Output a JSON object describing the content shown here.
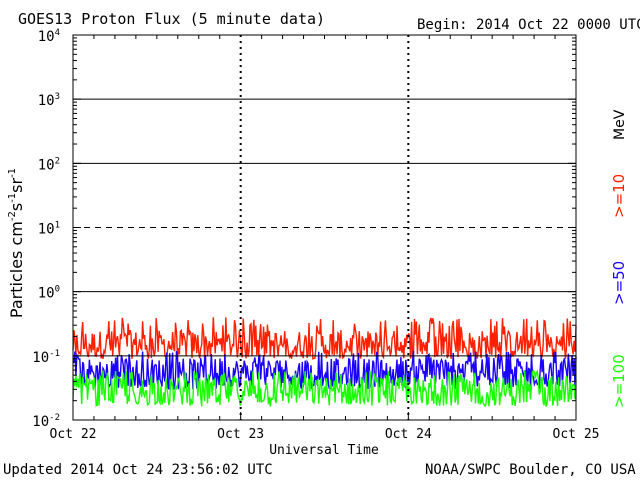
{
  "header": {
    "title": "GOES13 Proton Flux (5 minute data)",
    "begin": "Begin: 2014 Oct 22 0000 UTC"
  },
  "footer": {
    "updated": "Updated 2014 Oct 24 23:56:02 UTC",
    "source": "NOAA/SWPC Boulder, CO USA"
  },
  "chart_data": {
    "type": "line",
    "title": "GOES13 Proton Flux (5 minute data)",
    "xlabel": "Universal Time",
    "ylabel_parts": {
      "base": "Particles cm",
      "exp1": "-2",
      "mid1": "s",
      "exp2": "-1",
      "mid2": "sr",
      "exp3": "-1"
    },
    "y_scale": "log",
    "ylim": [
      0.01,
      10000
    ],
    "y_ticks": [
      {
        "base": "10",
        "exp": "-2",
        "value": 0.01
      },
      {
        "base": "10",
        "exp": "-1",
        "value": 0.1
      },
      {
        "base": "10",
        "exp": "0",
        "value": 1
      },
      {
        "base": "10",
        "exp": "1",
        "value": 10
      },
      {
        "base": "10",
        "exp": "2",
        "value": 100
      },
      {
        "base": "10",
        "exp": "3",
        "value": 1000
      },
      {
        "base": "10",
        "exp": "4",
        "value": 10000
      }
    ],
    "x_ticks": [
      "Oct 22",
      "Oct 23",
      "Oct 24",
      "Oct 25"
    ],
    "xlim": [
      "2014-10-22 00:00",
      "2014-10-25 00:00"
    ],
    "thresholds": [
      {
        "value": 1000,
        "style": "solid"
      },
      {
        "value": 100,
        "style": "solid"
      },
      {
        "value": 10,
        "style": "dashed"
      },
      {
        "value": 1,
        "style": "solid"
      },
      {
        "value": 0.1,
        "style": "solid"
      }
    ],
    "day_separators": "dashed vertical",
    "series": [
      {
        "name": ">=10",
        "color": "#ff2000",
        "baseline": 0.15,
        "range": [
          0.09,
          0.4
        ]
      },
      {
        "name": ">=50",
        "color": "#1a00ff",
        "baseline": 0.055,
        "range": [
          0.03,
          0.12
        ]
      },
      {
        "name": ">=100",
        "color": "#18ff00",
        "baseline": 0.028,
        "range": [
          0.016,
          0.06
        ]
      }
    ],
    "energy_unit": "MeV"
  }
}
